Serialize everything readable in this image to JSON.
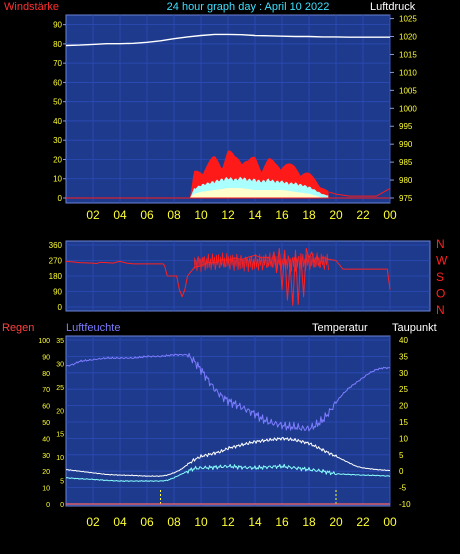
{
  "header": {
    "left_label": "Windstärke",
    "title": "24 hour graph day : April 10 2022",
    "right_label": "Luftdruck"
  },
  "colors": {
    "background": "#000000",
    "panel": "#1e3a8c",
    "grid": "#2c4cb8",
    "tick_text": "#ffff33",
    "pressure": "#ffffff",
    "wind_gust": "#ff1a1a",
    "wind_avg": "#aaffff",
    "wind_min": "#ffffcc",
    "direction": "#ff2020",
    "humidity": "#7c7cff",
    "temperature": "#ffffff",
    "dewpoint": "#88ffff",
    "rain": "#ff6666",
    "regen_label": "#ff4040",
    "luftfeuchte_label": "#7c7cff"
  },
  "chart_data": [
    {
      "type": "line",
      "name": "wind_pressure",
      "x_ticks": [
        "02",
        "04",
        "06",
        "08",
        "10",
        "12",
        "14",
        "16",
        "18",
        "20",
        "22",
        "00"
      ],
      "left_ticks": [
        "90",
        "80",
        "70",
        "60",
        "50",
        "40",
        "30",
        "20",
        "10",
        "0"
      ],
      "right_ticks": [
        "1025",
        "1020",
        "1015",
        "1010",
        "1005",
        "1000",
        "995",
        "990",
        "985",
        "980",
        "975"
      ],
      "left_axis_label": "Windstärke",
      "right_axis_label": "Luftdruck",
      "ylim_left": [
        0,
        95
      ],
      "ylim_right": [
        975,
        1026
      ],
      "xlim": [
        0,
        24
      ],
      "grid": true,
      "series": [
        {
          "key": "pressure",
          "axis": "right",
          "x": [
            0,
            1,
            2,
            3,
            4,
            5,
            6,
            7,
            8,
            9,
            10,
            11,
            12,
            13,
            14,
            15,
            16,
            17,
            18,
            19,
            20,
            21,
            22,
            23,
            24
          ],
          "values": [
            1017.5,
            1017.6,
            1017.8,
            1018.0,
            1018.0,
            1018.1,
            1018.4,
            1018.8,
            1019.4,
            1019.9,
            1020.3,
            1020.6,
            1020.6,
            1020.5,
            1020.3,
            1020.2,
            1020.1,
            1020.0,
            1020.0,
            1019.9,
            1019.9,
            1019.8,
            1019.8,
            1019.8,
            1019.8
          ]
        },
        {
          "key": "wind_gust",
          "axis": "left",
          "x": [
            0,
            9.2,
            9.5,
            10,
            10.5,
            11,
            11.5,
            12,
            12.5,
            13,
            13.5,
            14,
            14.5,
            15,
            15.5,
            16,
            16.5,
            17,
            17.5,
            18,
            18.5,
            19,
            19.5,
            20,
            21,
            22,
            23,
            24
          ],
          "values": [
            0,
            0,
            14,
            16,
            19,
            22,
            20,
            26,
            22,
            24,
            20,
            22,
            18,
            21,
            19,
            20,
            18,
            17,
            15,
            13,
            10,
            6,
            3,
            2,
            1,
            1,
            1,
            5
          ]
        },
        {
          "key": "wind_avg",
          "axis": "left",
          "x": [
            0,
            9.2,
            9.5,
            10,
            10.5,
            11,
            11.5,
            12,
            12.5,
            13,
            13.5,
            14,
            14.5,
            15,
            15.5,
            16,
            16.5,
            17,
            17.5,
            18,
            18.5,
            19,
            19.5,
            20,
            24
          ],
          "values": [
            0,
            0,
            5,
            7,
            8,
            9,
            10,
            11,
            10,
            11,
            10,
            10,
            9,
            10,
            9,
            9,
            8,
            8,
            7,
            6,
            4,
            2,
            1,
            0,
            0
          ]
        },
        {
          "key": "wind_min",
          "axis": "left",
          "x": [
            0,
            9.2,
            9.5,
            10,
            11,
            12,
            13,
            14,
            15,
            16,
            17,
            18,
            18.5,
            19,
            24
          ],
          "values": [
            0,
            0,
            2,
            3,
            4,
            5,
            5,
            4,
            4,
            4,
            3,
            2,
            1,
            0,
            0
          ]
        }
      ]
    },
    {
      "type": "line",
      "name": "wind_direction",
      "x_ticks": [],
      "left_ticks": [
        "360",
        "270",
        "180",
        "90",
        "0"
      ],
      "right_ticks": [
        "N",
        "W",
        "S",
        "O",
        "N"
      ],
      "ylim": [
        0,
        360
      ],
      "xlim": [
        0,
        24
      ],
      "grid": true,
      "series": [
        {
          "key": "direction",
          "x": [
            0,
            0.5,
            1,
            1.5,
            2,
            2.3,
            2.5,
            3,
            3.5,
            3.8,
            4,
            4.5,
            5,
            5.5,
            6,
            6.5,
            7,
            7.2,
            7.3,
            7.5,
            8,
            8.2,
            8.4,
            8.6,
            8.8,
            9,
            9.2,
            9.5,
            10,
            10.5,
            11,
            11.5,
            12,
            12.5,
            13,
            13.5,
            14,
            14.5,
            15,
            15.2,
            15.4,
            15.6,
            15.8,
            16,
            16.2,
            16.4,
            16.6,
            16.8,
            17,
            17.2,
            17.4,
            17.6,
            17.8,
            18,
            18.2,
            18.4,
            18.6,
            18.8,
            19,
            19.3,
            19.6,
            20,
            20.5,
            21,
            22,
            23,
            23.5,
            23.8,
            24
          ],
          "values": [
            265,
            262,
            258,
            256,
            255,
            252,
            260,
            258,
            255,
            262,
            265,
            255,
            250,
            250,
            250,
            250,
            250,
            250,
            240,
            180,
            180,
            180,
            100,
            60,
            100,
            180,
            200,
            230,
            240,
            260,
            255,
            275,
            270,
            285,
            275,
            290,
            300,
            285,
            290,
            250,
            320,
            200,
            340,
            100,
            330,
            40,
            250,
            10,
            330,
            15,
            310,
            60,
            340,
            280,
            320,
            260,
            300,
            250,
            290,
            280,
            275,
            270,
            220,
            220,
            220,
            220,
            220,
            220,
            100
          ]
        }
      ]
    },
    {
      "type": "line",
      "name": "humidity_temperature",
      "x_ticks": [
        "02",
        "04",
        "06",
        "08",
        "10",
        "12",
        "14",
        "16",
        "18",
        "20",
        "22",
        "00"
      ],
      "outer_left_ticks": [
        "100",
        "90",
        "80",
        "70",
        "60",
        "50",
        "40",
        "30",
        "20",
        "10",
        "0"
      ],
      "inner_left_ticks": [
        "35",
        "30",
        "25",
        "20",
        "15",
        "10",
        "5",
        "0"
      ],
      "right_ticks": [
        "40",
        "35",
        "30",
        "25",
        "20",
        "15",
        "10",
        "5",
        "0",
        "-5",
        "-10"
      ],
      "label_regen": "Regen",
      "label_luftfeuchte": "Luftfeuchte",
      "label_temperatur": "Temperatur",
      "label_taupunkt": "Taupunkt",
      "ylim_humidity": [
        0,
        100
      ],
      "ylim_rain": [
        0,
        35
      ],
      "ylim_temp": [
        -10,
        40
      ],
      "xlim": [
        0,
        24
      ],
      "grid": true,
      "marker_hours": [
        7,
        20
      ],
      "series": [
        {
          "key": "humidity",
          "axis": "humidity",
          "x": [
            0,
            0.5,
            1,
            2,
            3,
            4,
            5,
            6,
            7,
            8,
            9,
            9.5,
            10,
            10.5,
            11,
            11.5,
            12,
            12.5,
            13,
            13.5,
            14,
            14.5,
            15,
            15.5,
            16,
            16.5,
            17,
            17.5,
            18,
            18.5,
            19,
            19.5,
            20,
            20.5,
            21,
            21.5,
            22,
            22.5,
            23,
            23.5,
            24
          ],
          "values": [
            84,
            85,
            87,
            88,
            89,
            89,
            89,
            90,
            90,
            91,
            91,
            87,
            82,
            76,
            70,
            66,
            63,
            61,
            59,
            57,
            55,
            52,
            50,
            49,
            48,
            47,
            47,
            46,
            46,
            48,
            51,
            56,
            62,
            67,
            71,
            74,
            77,
            80,
            82,
            83,
            83
          ]
        },
        {
          "key": "temperature",
          "axis": "temp",
          "x": [
            0,
            1,
            2,
            3,
            4,
            5,
            6,
            7,
            7.5,
            8,
            8.5,
            9,
            9.5,
            10,
            10.5,
            11,
            11.5,
            12,
            13,
            14,
            15,
            16,
            17,
            17.5,
            18,
            18.5,
            19,
            19.5,
            20,
            20.5,
            21,
            21.5,
            22,
            23,
            24
          ],
          "values": [
            0.5,
            0,
            -0.5,
            -1,
            -1.2,
            -1.3,
            -1.5,
            -1.5,
            -1.2,
            -0.5,
            0.5,
            2,
            3.5,
            4.5,
            5,
            5.5,
            6,
            7,
            8,
            9,
            9.5,
            10,
            9.5,
            9,
            8.5,
            7.5,
            6.5,
            5.5,
            4.5,
            3.5,
            2.5,
            1.5,
            1,
            0.5,
            0.2
          ]
        },
        {
          "key": "dewpoint",
          "axis": "temp",
          "x": [
            0,
            1,
            2,
            3,
            4,
            5,
            6,
            7,
            7.5,
            8,
            8.5,
            9,
            9.5,
            10,
            11,
            12,
            13,
            14,
            15,
            16,
            17,
            18,
            19,
            20,
            21,
            22,
            23,
            24
          ],
          "values": [
            -2,
            -2.3,
            -2.5,
            -2.8,
            -3,
            -3,
            -3,
            -3,
            -2.8,
            -2,
            -1,
            0,
            0.8,
            1,
            1.2,
            1.5,
            1.2,
            1,
            1.3,
            1.5,
            1,
            0.5,
            0,
            -0.8,
            -1,
            -1.2,
            -1.3,
            -1.5
          ]
        },
        {
          "key": "rain",
          "axis": "rain",
          "x": [
            0,
            24
          ],
          "values": [
            0,
            0
          ]
        }
      ]
    }
  ]
}
